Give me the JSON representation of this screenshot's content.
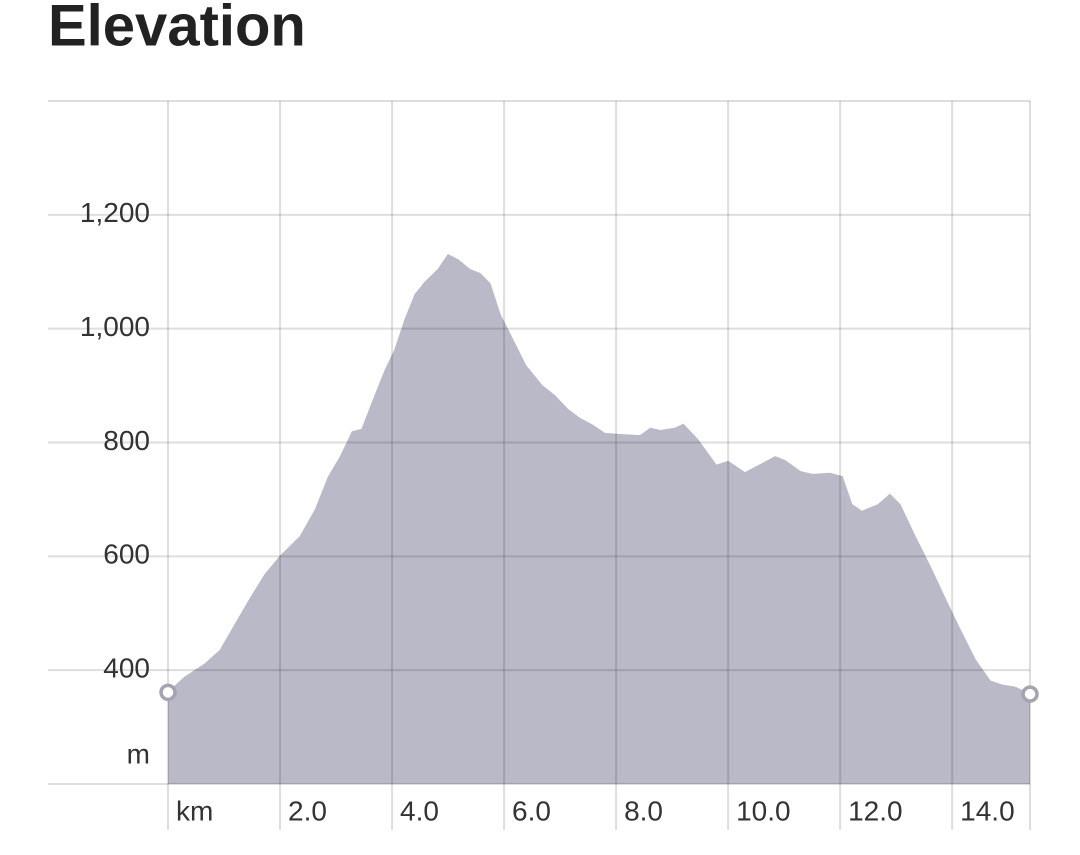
{
  "chart_data": {
    "type": "area",
    "title": "Elevation",
    "y_unit": "m",
    "x": [
      0,
      0.3,
      0.66,
      0.93,
      1.2,
      1.46,
      1.73,
      2.0,
      2.36,
      2.63,
      2.86,
      3.07,
      3.29,
      3.46,
      3.7,
      3.88,
      4.05,
      4.23,
      4.41,
      4.59,
      4.82,
      5.0,
      5.18,
      5.39,
      5.57,
      5.75,
      5.93,
      6.14,
      6.39,
      6.68,
      6.91,
      7.14,
      7.36,
      7.59,
      7.8,
      8.07,
      8.43,
      8.61,
      8.79,
      9.05,
      9.2,
      9.46,
      9.79,
      10.0,
      10.3,
      10.61,
      10.84,
      11.02,
      11.29,
      11.5,
      11.82,
      12.04,
      12.21,
      12.39,
      12.68,
      12.89,
      13.07,
      13.34,
      13.61,
      13.88,
      14.14,
      14.41,
      14.68,
      14.89,
      15.13,
      15.39
    ],
    "values": [
      361,
      388,
      411,
      435,
      481,
      525,
      568,
      600,
      635,
      682,
      739,
      774,
      819,
      823,
      884,
      928,
      963,
      1016,
      1060,
      1082,
      1104,
      1130,
      1121,
      1104,
      1097,
      1079,
      1025,
      984,
      935,
      900,
      882,
      858,
      842,
      830,
      816,
      814,
      812,
      825,
      821,
      825,
      832,
      805,
      760,
      767,
      747,
      763,
      775,
      768,
      749,
      744,
      746,
      740,
      691,
      679,
      691,
      709,
      691,
      635,
      582,
      525,
      472,
      419,
      381,
      374,
      370,
      358
    ],
    "color": "#b9b9c7",
    "xlim": [
      0,
      15.39
    ],
    "ylim": [
      200,
      1400
    ],
    "xticks": [
      {
        "value": 0,
        "label": "km"
      },
      {
        "value": 2,
        "label": "2.0"
      },
      {
        "value": 4,
        "label": "4.0"
      },
      {
        "value": 6,
        "label": "6.0"
      },
      {
        "value": 8,
        "label": "8.0"
      },
      {
        "value": 10,
        "label": "10.0"
      },
      {
        "value": 12,
        "label": "12.0"
      },
      {
        "value": 14,
        "label": "14.0"
      }
    ],
    "yticks": [
      400,
      600,
      800,
      {
        "value": 1000,
        "label": "1,000"
      },
      {
        "value": 1200,
        "label": "1,200"
      }
    ],
    "grid": true
  }
}
